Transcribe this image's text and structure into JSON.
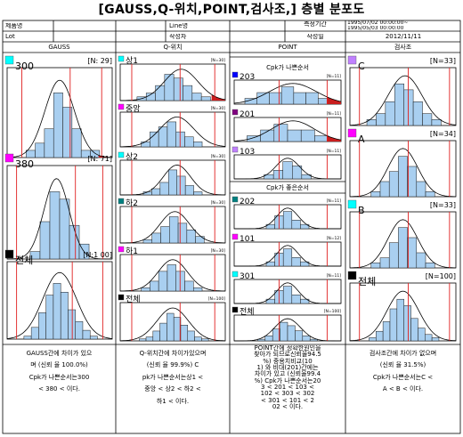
{
  "title": "[GAUSS,Q-위치,POINT,검사조,] 층별 분포도",
  "header": {
    "row1": {
      "c1": "제품명",
      "c3": "Line명",
      "c5": "측정기간",
      "period_start": "1995/07/02 00:00:00~",
      "period_end": "1995/05/03 00:00:00"
    },
    "row2": {
      "c1": "Lot",
      "c3": "작성자",
      "c5": "작성일",
      "date": "2012/11/11"
    },
    "columns": [
      "GAUSS",
      "Q-위치",
      "POINT",
      "검사조"
    ]
  },
  "colors": {
    "bar": "#a9cff0",
    "bar_stroke": "#1a1a1a",
    "curve": "#000000",
    "spec_line": "#e02020",
    "tail": "#c81e1e",
    "grid": "#000000"
  },
  "chart_data": [
    {
      "type": "bar",
      "label": "300",
      "n_badge": "[N: 29]",
      "icon": "#00ffff",
      "values": [
        1,
        2,
        4,
        9,
        7,
        4,
        1,
        1
      ],
      "range": [
        0.18,
        0.88
      ],
      "mean": 0.5,
      "sigma": 0.14,
      "limits": [
        0.14,
        0.6,
        0.9
      ],
      "tail": "right"
    },
    {
      "type": "bar",
      "label": "380",
      "n_badge": "[N: 71]",
      "icon": "#ff00ff",
      "values": [
        2,
        10,
        18,
        16,
        9,
        4
      ],
      "range": [
        0.22,
        0.78
      ],
      "mean": 0.47,
      "sigma": 0.12,
      "limits": [
        0.09,
        0.65,
        0.91
      ]
    },
    {
      "type": "bar",
      "label": "전체",
      "n_badge": "[N:1 00]",
      "icon": "#000000",
      "values": [
        1,
        4,
        9,
        15,
        19,
        16,
        10,
        6,
        3,
        1
      ],
      "range": [
        0.16,
        0.86
      ],
      "mean": 0.5,
      "sigma": 0.16,
      "limits": [
        0.09,
        0.62,
        0.91
      ]
    },
    {
      "type": "bar",
      "label": "상1",
      "n_badge": "[N=30]",
      "icon": "#00ffff",
      "values": [
        1,
        2,
        4,
        7,
        6,
        4,
        2,
        1
      ],
      "range": [
        0.16,
        0.86
      ],
      "mean": 0.58,
      "sigma": 0.16,
      "limits": [
        0.11,
        0.57,
        0.9
      ],
      "tail": "right"
    },
    {
      "type": "bar",
      "label": "중앙",
      "n_badge": "[N=30]",
      "icon": "#ff00ff",
      "values": [
        1,
        3,
        4,
        5,
        3,
        2,
        1
      ],
      "range": [
        0.2,
        0.78
      ],
      "mean": 0.54,
      "sigma": 0.16,
      "limits": [
        0.11,
        0.57,
        0.9
      ]
    },
    {
      "type": "bar",
      "label": "상2",
      "n_badge": "[N=30]",
      "icon": "#00ffff",
      "values": [
        1,
        2,
        4,
        8,
        6,
        3,
        1
      ],
      "range": [
        0.22,
        0.78
      ],
      "mean": 0.54,
      "sigma": 0.13,
      "limits": [
        0.11,
        0.57,
        0.9
      ]
    },
    {
      "type": "bar",
      "label": "하2",
      "n_badge": "[N=30]",
      "icon": "#008080",
      "values": [
        1,
        3,
        5,
        8,
        6,
        4,
        2
      ],
      "range": [
        0.22,
        0.8
      ],
      "mean": 0.52,
      "sigma": 0.14,
      "limits": [
        0.11,
        0.57,
        0.9
      ]
    },
    {
      "type": "bar",
      "label": "하1",
      "n_badge": "[N=30]",
      "icon": "#ff00ff",
      "values": [
        1,
        3,
        6,
        8,
        6,
        3,
        1
      ],
      "range": [
        0.2,
        0.78
      ],
      "mean": 0.5,
      "sigma": 0.14,
      "limits": [
        0.11,
        0.57,
        0.9
      ]
    },
    {
      "type": "bar",
      "label": "전체",
      "n_badge": "[N=100]",
      "icon": "#000000",
      "values": [
        1,
        2,
        5,
        9,
        14,
        12,
        8,
        5,
        2,
        1
      ],
      "range": [
        0.18,
        0.84
      ],
      "mean": 0.5,
      "sigma": 0.15,
      "limits": [
        0.11,
        0.57,
        0.9
      ]
    },
    {
      "type": "bar",
      "label": "203",
      "n_badge": "[N=11]",
      "icon": "#0000ff",
      "values": [
        1,
        2,
        2,
        3,
        2,
        2,
        1
      ],
      "range": [
        0.1,
        0.9
      ],
      "mean": 0.55,
      "sigma": 0.22,
      "limits": [
        0.42,
        0.87
      ],
      "tail": "right"
    },
    {
      "type": "bar",
      "label": "201",
      "n_badge": "[N=11]",
      "icon": "#800080",
      "values": [
        1,
        2,
        3,
        2,
        2,
        1
      ],
      "range": [
        0.12,
        0.88
      ],
      "mean": 0.55,
      "sigma": 0.2,
      "limits": [
        0.42,
        0.87
      ],
      "tail": "right"
    },
    {
      "type": "bar",
      "label": "103",
      "n_badge": "[N=11]",
      "icon": "#c080ff",
      "values": [
        1,
        2,
        4,
        3,
        1
      ],
      "range": [
        0.28,
        0.72
      ],
      "mean": 0.5,
      "sigma": 0.11,
      "limits": [
        0.42,
        0.87
      ]
    },
    {
      "type": "bar",
      "label": "202",
      "n_badge": "[N=11]",
      "icon": "#008080",
      "values": [
        1,
        3,
        4,
        2,
        1
      ],
      "range": [
        0.3,
        0.7
      ],
      "mean": 0.5,
      "sigma": 0.1,
      "limits": [
        0.42,
        0.87
      ]
    },
    {
      "type": "bar",
      "label": "101",
      "n_badge": "[N=12]",
      "icon": "#ff00ff",
      "values": [
        1,
        3,
        4,
        2,
        1
      ],
      "range": [
        0.3,
        0.7
      ],
      "mean": 0.5,
      "sigma": 0.1,
      "limits": [
        0.42,
        0.87
      ]
    },
    {
      "type": "bar",
      "label": "301",
      "n_badge": "[N=11]",
      "icon": "#00ffff",
      "values": [
        1,
        3,
        4,
        2,
        1
      ],
      "range": [
        0.3,
        0.7
      ],
      "mean": 0.5,
      "sigma": 0.1,
      "limits": [
        0.42,
        0.87
      ]
    },
    {
      "type": "bar",
      "label": "전체",
      "n_badge": "[N=100]",
      "icon": "#000000",
      "values": [
        1,
        3,
        7,
        11,
        9,
        6,
        3,
        1
      ],
      "range": [
        0.22,
        0.78
      ],
      "mean": 0.5,
      "sigma": 0.12,
      "limits": [
        0.42,
        0.87
      ]
    },
    {
      "type": "bar",
      "label": "C",
      "n_badge": "[N=33]",
      "icon": "#c080ff",
      "values": [
        1,
        2,
        4,
        7,
        6,
        4,
        2,
        1
      ],
      "range": [
        0.16,
        0.86
      ],
      "mean": 0.52,
      "sigma": 0.16,
      "limits": [
        0.09,
        0.55,
        0.94
      ]
    },
    {
      "type": "bar",
      "label": "A",
      "n_badge": "[N=34]",
      "icon": "#ff00ff",
      "values": [
        1,
        3,
        5,
        8,
        6,
        3,
        1
      ],
      "range": [
        0.2,
        0.8
      ],
      "mean": 0.5,
      "sigma": 0.14,
      "limits": [
        0.09,
        0.55,
        0.94
      ]
    },
    {
      "type": "bar",
      "label": "B",
      "n_badge": "[N=33]",
      "icon": "#00ffff",
      "values": [
        1,
        2,
        5,
        8,
        6,
        3,
        1
      ],
      "range": [
        0.2,
        0.8
      ],
      "mean": 0.5,
      "sigma": 0.14,
      "limits": [
        0.09,
        0.55,
        0.94
      ]
    },
    {
      "type": "bar",
      "label": "전체",
      "n_badge": "[N=100]",
      "icon": "#000000",
      "values": [
        1,
        3,
        6,
        10,
        13,
        11,
        7,
        4,
        2,
        1
      ],
      "range": [
        0.18,
        0.84
      ],
      "mean": 0.5,
      "sigma": 0.15,
      "limits": [
        0.09,
        0.55,
        0.94
      ]
    }
  ],
  "subheaders": {
    "point_top": "Cpk가 나쁜순서",
    "point_mid": "Cpk가 좋은순서"
  },
  "notes": {
    "gauss": [
      "GAUSS간에 차이가 있으",
      "며 (신뢰 율 100.0%)",
      "Cpk가 나쁜순서는300",
      "< 380 < 이다."
    ],
    "q": [
      "Q-위치간에 차이가있으며",
      "(신뢰 율 99.9%) C",
      "pk가 나쁜순서는상1 <",
      "중앙 < 상2 < 하2 <",
      "하1 < 이다."
    ],
    "point": [
      "POINT간에 정확한원인을",
      "찾아가 되므로신뢰율94.5",
      "%) 중용치비교(10",
      "1) 와 비대(201)간에는",
      "차이가 있고 (신뢰율99.4",
      "%) Cpk가 나쁜순서는20",
      "3 < 201 < 103 <",
      "102 < 303 < 302",
      "< 301 < 101 < 2",
      "02 < 이다."
    ],
    "inspect": [
      "검사조간에 차이가 없으며",
      "(신뢰 율 31.5%)",
      "Cpk가 나쁜순서는C <",
      "A < B < 이다."
    ]
  }
}
